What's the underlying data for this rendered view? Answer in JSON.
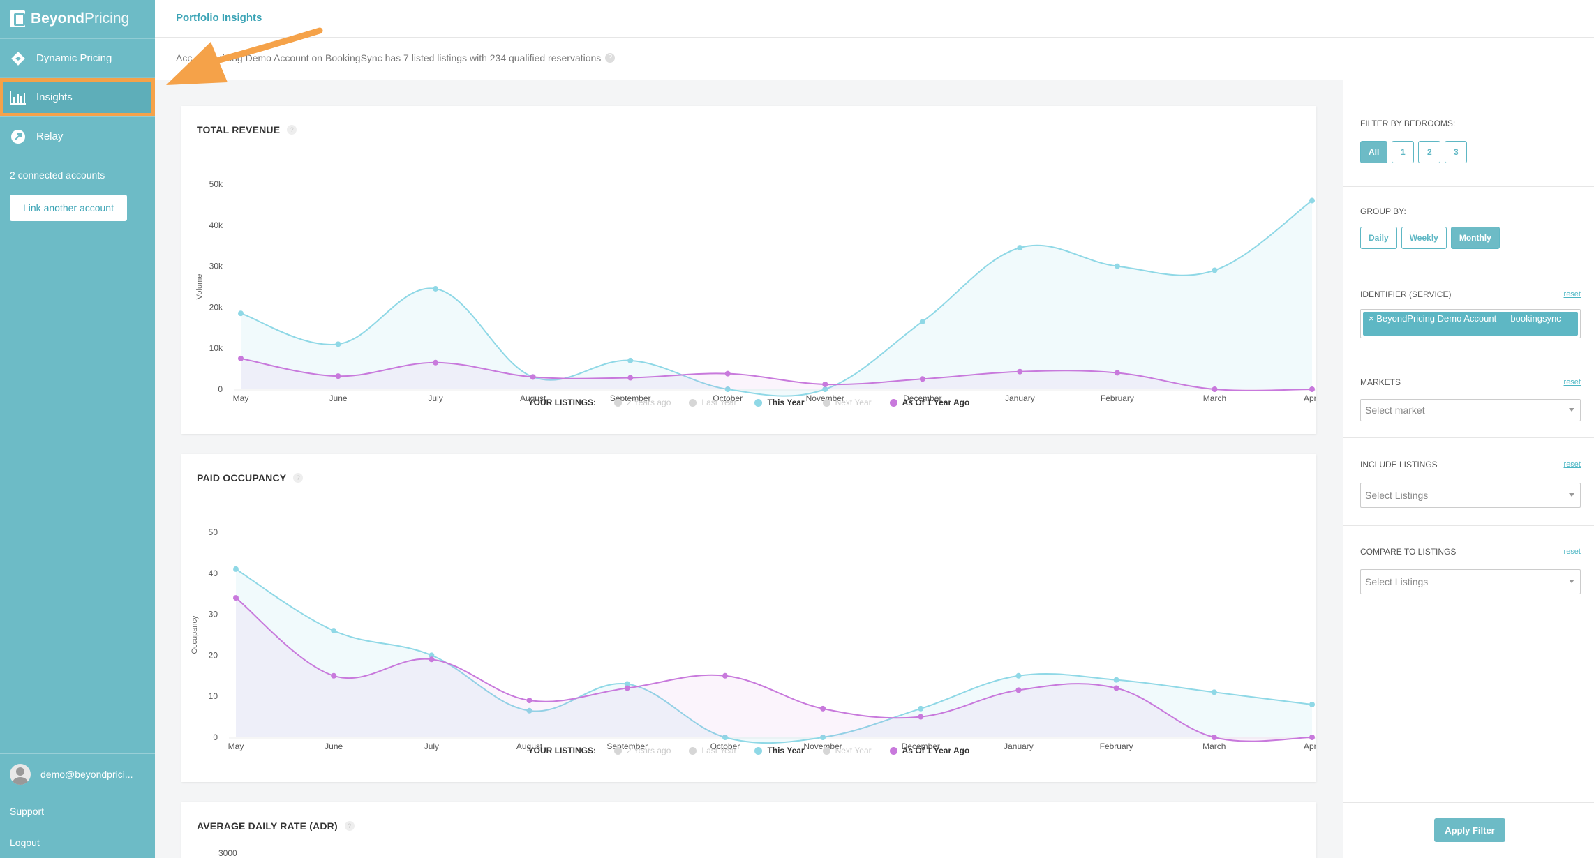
{
  "brand": {
    "strong": "Beyond",
    "light": "Pricing"
  },
  "sidebar": {
    "items": [
      {
        "label": "Dynamic Pricing",
        "icon": "pricing-diamond-icon"
      },
      {
        "label": "Insights",
        "icon": "bar-chart-icon"
      },
      {
        "label": "Relay",
        "icon": "relay-icon"
      }
    ],
    "connected": "2 connected accounts",
    "link_button": "Link another account",
    "user_email": "demo@beyondprici...",
    "support": "Support",
    "logout": "Logout"
  },
  "header": {
    "title": "Portfolio Insights"
  },
  "summary": {
    "text": "Acc          ricing Demo Account on BookingSync has 7 listed listings with 234 qualified reservations"
  },
  "legend": {
    "label": "YOUR LISTINGS:",
    "items": [
      {
        "label": "2 Years ago",
        "active": false,
        "color": "#d6d6d6"
      },
      {
        "label": "Last Year",
        "active": false,
        "color": "#d6d6d6"
      },
      {
        "label": "This Year",
        "active": true,
        "color": "#8fd8e6"
      },
      {
        "label": "Next Year",
        "active": false,
        "color": "#d6d6d6"
      },
      {
        "label": "As Of 1 Year Ago",
        "active": true,
        "color": "#c879dc"
      }
    ]
  },
  "colors": {
    "accent": "#6dbbc6",
    "this_year": "#8fd8e6",
    "one_year_ago": "#c879dc",
    "highlight": "#f5a249"
  },
  "chart_data": [
    {
      "type": "line",
      "title": "TOTAL REVENUE",
      "ylabel": "Volume",
      "categories": [
        "May",
        "June",
        "July",
        "August",
        "September",
        "October",
        "November",
        "December",
        "January",
        "February",
        "March",
        "April"
      ],
      "yticks": [
        "50k",
        "40k",
        "30k",
        "20k",
        "10k",
        "0"
      ],
      "ylim": [
        0,
        50000
      ],
      "series": [
        {
          "name": "This Year",
          "values": [
            18500,
            11000,
            24500,
            3000,
            7000,
            0,
            0,
            16500,
            34500,
            30000,
            29000,
            46000
          ]
        },
        {
          "name": "As Of 1 Year Ago",
          "values": [
            7500,
            3200,
            6500,
            3000,
            2800,
            3800,
            1200,
            2500,
            4300,
            4000,
            0,
            0
          ]
        }
      ]
    },
    {
      "type": "line",
      "title": "PAID OCCUPANCY",
      "ylabel": "Occupancy",
      "categories": [
        "May",
        "June",
        "July",
        "August",
        "September",
        "October",
        "November",
        "December",
        "January",
        "February",
        "March",
        "April"
      ],
      "yticks": [
        "50",
        "40",
        "30",
        "20",
        "10",
        "0"
      ],
      "ylim": [
        0,
        50
      ],
      "series": [
        {
          "name": "This Year",
          "values": [
            41,
            26,
            20,
            6.5,
            13,
            0,
            0,
            7,
            15,
            14,
            11,
            8
          ]
        },
        {
          "name": "As Of 1 Year Ago",
          "values": [
            34,
            15,
            19,
            9,
            12,
            15,
            7,
            5,
            11.5,
            12,
            0,
            0
          ]
        }
      ]
    },
    {
      "type": "line",
      "title": "AVERAGE DAILY RATE (ADR)",
      "yticks": [
        "3000"
      ]
    }
  ],
  "filters": {
    "bedrooms": {
      "title": "FILTER BY BEDROOMS:",
      "options": [
        "All",
        "1",
        "2",
        "3"
      ],
      "selected": "All"
    },
    "group_by": {
      "title": "GROUP BY:",
      "options": [
        "Daily",
        "Weekly",
        "Monthly"
      ],
      "selected": "Monthly"
    },
    "identifier": {
      "title": "IDENTIFIER (SERVICE)",
      "reset": "reset",
      "tag": "× BeyondPricing Demo Account — bookingsync"
    },
    "markets": {
      "title": "MARKETS",
      "reset": "reset",
      "placeholder": "Select market"
    },
    "include": {
      "title": "INCLUDE LISTINGS",
      "reset": "reset",
      "placeholder": "Select Listings"
    },
    "compare": {
      "title": "COMPARE TO LISTINGS",
      "reset": "reset",
      "placeholder": "Select Listings"
    },
    "apply": "Apply Filter"
  }
}
